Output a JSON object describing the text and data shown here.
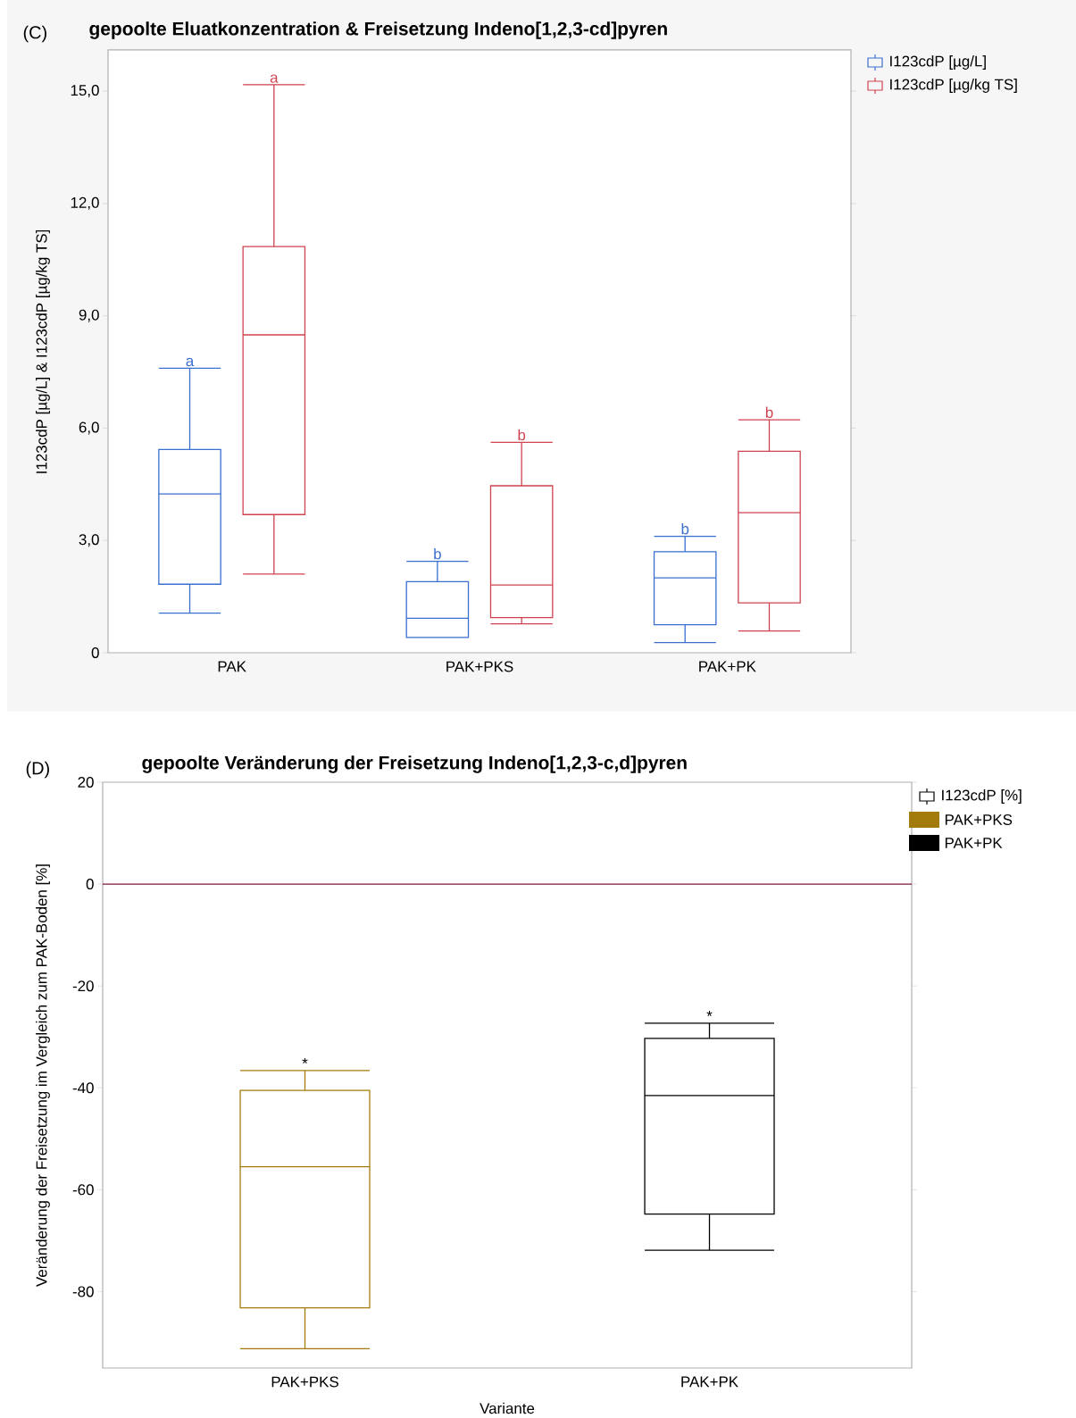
{
  "chart_data": [
    {
      "type": "box",
      "title": "gepoolte Eluatkonzentration & Freisetzung Indeno[1,2,3-cd]pyren",
      "ylabel": "I123cdP [µg/L] & I123cdP [µg/kg TS]",
      "categories": [
        "PAK",
        "PAK+PKS",
        "PAK+PK"
      ],
      "ylim": [
        0,
        16.1
      ],
      "yticks": [
        0,
        {
          "value": 3,
          "label": "3,0"
        },
        {
          "value": 6,
          "label": "6,0"
        },
        {
          "value": 9,
          "label": "9,0"
        },
        {
          "value": 12,
          "label": "12,0"
        },
        {
          "value": 15,
          "label": "15,0"
        }
      ],
      "legend": "top right",
      "series": [
        {
          "name": "I123cdP [µg/L]",
          "color": "#3a6fd0",
          "boxes": [
            {
              "low": 1.06,
              "q1": 1.83,
              "median": 4.24,
              "q3": 5.43,
              "high": 7.6
            },
            {
              "low": 0.41,
              "q1": 0.41,
              "median": 0.92,
              "q3": 1.9,
              "high": 2.44
            },
            {
              "low": 0.27,
              "q1": 0.75,
              "median": 2.0,
              "q3": 2.7,
              "high": 3.11
            }
          ]
        },
        {
          "name": "I123cdP [µg/kg TS]",
          "color": "#d0424f",
          "boxes": [
            {
              "low": 2.1,
              "q1": 3.69,
              "median": 8.49,
              "q3": 10.85,
              "high": 15.17
            },
            {
              "low": 0.77,
              "q1": 0.94,
              "median": 1.81,
              "q3": 4.46,
              "high": 5.62
            },
            {
              "low": 0.58,
              "q1": 1.33,
              "median": 3.74,
              "q3": 5.38,
              "high": 6.22
            }
          ]
        }
      ],
      "annotations": [
        "(C)",
        "a",
        "a",
        "b",
        "b",
        "b",
        "b"
      ]
    },
    {
      "type": "box",
      "title": "gepoolte Veränderung der Freisetzung Indeno[1,2,3-c,d]pyren",
      "xlabel": "Variante",
      "ylabel": "Veränderung der Freisetzung im Vergleich zum PAK-Boden [%]",
      "categories": [
        "PAK+PKS",
        "PAK+PK"
      ],
      "ylim": [
        -95,
        20
      ],
      "yticks": [
        -80,
        -60,
        -40,
        -20,
        0,
        20
      ],
      "legend": "top right",
      "series": [
        {
          "name": "I123cdP [%]",
          "colors": [
            "#a37b0c",
            "#000000"
          ],
          "boxes": [
            {
              "low": -91.2,
              "q1": -83.2,
              "median": -55.5,
              "q3": -40.5,
              "high": -36.6
            },
            {
              "low": -71.9,
              "q1": -64.8,
              "median": -41.5,
              "q3": -30.3,
              "high": -27.3
            }
          ]
        }
      ],
      "ref_lines": [
        {
          "axis": "y",
          "value": 0,
          "color": "#7a1a3a"
        }
      ],
      "annotations": [
        "(D)",
        "*",
        "*"
      ]
    }
  ]
}
